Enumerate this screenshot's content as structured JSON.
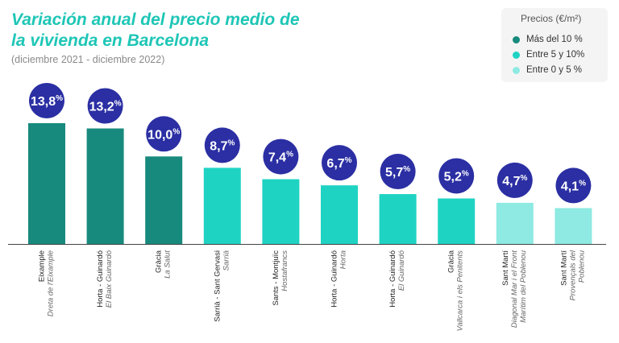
{
  "chart_data": {
    "type": "bar",
    "title": "Variación anual del precio medio de la vivienda en Barcelona",
    "subtitle": "(diciembre 2021 - diciembre 2022)",
    "legend_title": "Precios (€/m²)",
    "legend": [
      {
        "label": "Más del 10 %",
        "color": "#178a7d"
      },
      {
        "label": "Entre 5 y 10%",
        "color": "#1fd3c3"
      },
      {
        "label": "Entre 0 y 5 %",
        "color": "#8eeae2"
      }
    ],
    "categories": [
      {
        "name": "Eixample",
        "sub": [
          "Dreta de l'Eixample"
        ],
        "value": 13.8,
        "label": "13,8",
        "tier": 0
      },
      {
        "name": "Horta - Guinardó",
        "sub": [
          "El Baix Guinardó"
        ],
        "value": 13.2,
        "label": "13,2",
        "tier": 0
      },
      {
        "name": "Gràcia",
        "sub": [
          "La Salut"
        ],
        "value": 10.0,
        "label": "10,0",
        "tier": 0
      },
      {
        "name": "Sarrià - Sant Gervasi",
        "sub": [
          "Sarrià"
        ],
        "value": 8.7,
        "label": "8,7",
        "tier": 1
      },
      {
        "name": "Sants - Montjuïc",
        "sub": [
          "Hostafrancs"
        ],
        "value": 7.4,
        "label": "7,4",
        "tier": 1
      },
      {
        "name": "Horta - Guinardó",
        "sub": [
          "Horta"
        ],
        "value": 6.7,
        "label": "6,7",
        "tier": 1
      },
      {
        "name": "Horta - Guinardó",
        "sub": [
          "El Guinardó"
        ],
        "value": 5.7,
        "label": "5,7",
        "tier": 1
      },
      {
        "name": "Gràcia",
        "sub": [
          "Vallcarca i els Penitents"
        ],
        "value": 5.2,
        "label": "5,2",
        "tier": 1
      },
      {
        "name": "Sant Martí",
        "sub": [
          "Diagonal Mar i el Front",
          "Marítim del Poblenou"
        ],
        "value": 4.7,
        "label": "4,7",
        "tier": 2
      },
      {
        "name": "Sant Martí",
        "sub": [
          "Provençals del",
          "Poblenou"
        ],
        "value": 4.1,
        "label": "4,1",
        "tier": 2
      }
    ],
    "unit": "%",
    "ylim": [
      0,
      14
    ]
  },
  "colors": {
    "bubble": "#2b2fa3",
    "bubble_text": "#ffffff",
    "axis": "#444444"
  }
}
